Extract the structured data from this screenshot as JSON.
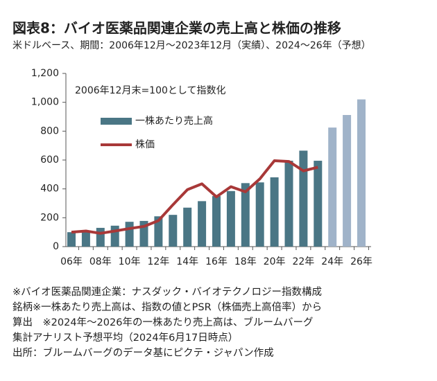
{
  "chart_data": {
    "type": "bar",
    "title": "図表8：バイオ医薬品関連企業の売上高と株価の推移",
    "subtitle": "米ドルベース、期間：2006年12月～2023年12月（実績）、2024～26年（予想）",
    "annotation": "2006年12月末=100として指数化",
    "categories": [
      "06年",
      null,
      "08年",
      null,
      "10年",
      null,
      "12年",
      null,
      "14年",
      null,
      "16年",
      null,
      "18年",
      null,
      "20年",
      null,
      "22年",
      null,
      "24年",
      null,
      "26年"
    ],
    "series": [
      {
        "name": "一株あたり売上高",
        "type": "bar",
        "color": "#4a7685",
        "colors": [
          "#4a7685",
          "#4a7685",
          "#4a7685",
          "#4a7685",
          "#4a7685",
          "#4a7685",
          "#4a7685",
          "#4a7685",
          "#4a7685",
          "#4a7685",
          "#4a7685",
          "#4a7685",
          "#4a7685",
          "#4a7685",
          "#4a7685",
          "#4a7685",
          "#4a7685",
          "#4a7685",
          "#a0b3c9",
          "#a0b3c9",
          "#a0b3c9"
        ],
        "values": [
          100,
          110,
          130,
          145,
          172,
          178,
          210,
          220,
          270,
          315,
          350,
          385,
          440,
          445,
          480,
          595,
          665,
          595,
          825,
          912,
          1020
        ]
      },
      {
        "name": "株価",
        "type": "line",
        "color": "#a83838",
        "values": [
          100,
          108,
          92,
          108,
          125,
          140,
          180,
          290,
          395,
          435,
          345,
          415,
          380,
          470,
          595,
          590,
          525,
          550,
          null,
          null,
          null
        ]
      }
    ],
    "ylim": [
      0,
      1200
    ],
    "yticks": [
      0,
      200,
      400,
      600,
      800,
      {
        "value": 1000,
        "label": "1,000"
      },
      {
        "value": 1200,
        "label": "1,200"
      }
    ],
    "notes": [
      "※バイオ医薬品関連企業：ナスダック・バイオテクノロジー指数構成",
      "銘柄※一株あたり売上高は、指数の値とPSR（株価売上高倍率）から",
      "算出　※2024年～2026年の一株あたり売上高は、ブルームバーグ",
      "集計アナリスト予想平均（2024年6月17日時点）",
      "出所：ブルームバーグのデータ基にピクテ・ジャパン作成"
    ]
  }
}
